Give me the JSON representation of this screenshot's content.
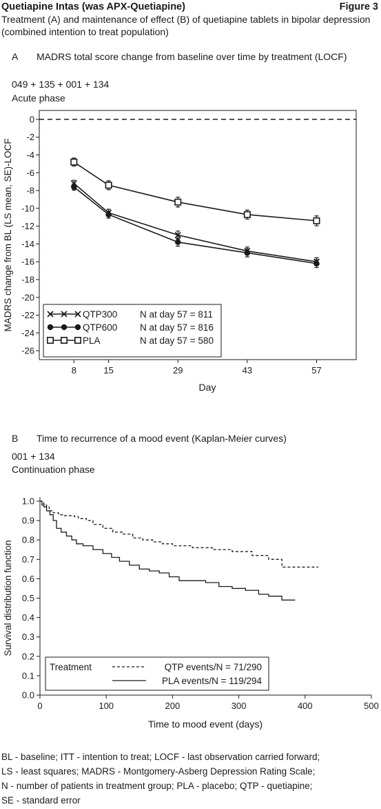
{
  "header": {
    "drug": "Quetiapine Intas (was APX-Quetiapine)",
    "figure": "Figure 3",
    "caption_line1": "Treatment (A) and maintenance of effect (B) of quetiapine tablets in bipolar depression",
    "caption_line2": "(combined intention to treat population)"
  },
  "panel_a": {
    "letter": "A",
    "heading": "MADRS total score change from baseline over time by treatment (LOCF)",
    "studies": "049 + 135 + 001 + 134",
    "phase": "Acute phase"
  },
  "panel_b": {
    "letter": "B",
    "heading": "Time to recurrence of a mood event (Kaplan-Meier curves)",
    "studies": "001 + 134",
    "phase": "Continuation phase"
  },
  "footnotes": [
    "BL - baseline; ITT - intention to treat; LOCF - last observation carried forward;",
    "LS - least squares; MADRS - Montgomery-Asberg Depression Rating Scale;",
    "N - number of patients in treatment group; PLA - placebo; QTP - quetiapine;",
    "SE - standard error"
  ],
  "chart_data": [
    {
      "type": "line",
      "xlabel": "Day",
      "ylabel": "MADRS change from BL (LS mean, SE)-LOCF",
      "x": [
        8,
        15,
        29,
        43,
        57
      ],
      "xlim": [
        1,
        65
      ],
      "ylim": [
        -27,
        1
      ],
      "yticks": [
        0,
        -2,
        -4,
        -6,
        -8,
        -10,
        -12,
        -14,
        -16,
        -18,
        -20,
        -22,
        -24,
        -26
      ],
      "reference_line": 0,
      "legend_position": "bottom-left",
      "series": [
        {
          "name": "QTP300",
          "n_label": "N at day 57 = 811",
          "marker": "x",
          "color": "#1a1a1a",
          "values": [
            -7.2,
            -10.5,
            -13.0,
            -14.8,
            -16.0
          ],
          "se": [
            0.35,
            0.4,
            0.45,
            0.45,
            0.45
          ]
        },
        {
          "name": "QTP600",
          "n_label": "N at day 57 = 816",
          "marker": "filled-circle",
          "color": "#1a1a1a",
          "values": [
            -7.6,
            -10.7,
            -13.8,
            -15.0,
            -16.2
          ],
          "se": [
            0.35,
            0.4,
            0.45,
            0.45,
            0.45
          ]
        },
        {
          "name": "PLA",
          "n_label": "N at day 57 = 580",
          "marker": "open-square",
          "color": "#1a1a1a",
          "values": [
            -4.8,
            -7.4,
            -9.3,
            -10.7,
            -11.4
          ],
          "se": [
            0.45,
            0.5,
            0.55,
            0.5,
            0.55
          ]
        }
      ]
    },
    {
      "type": "line",
      "subtype": "kaplan-meier",
      "xlabel": "Time to mood event (days)",
      "ylabel": "Survival distribution function",
      "xlim": [
        0,
        500
      ],
      "ylim": [
        0,
        1
      ],
      "xticks": [
        0,
        100,
        200,
        300,
        400,
        500
      ],
      "yticks": [
        "0.0",
        "0.1",
        "0.2",
        "0.3",
        "0.4",
        "0.5",
        "0.6",
        "0.7",
        "0.8",
        "0.9",
        "1.0"
      ],
      "legend_position": "bottom",
      "legend_title": "Treatment",
      "series": [
        {
          "name": "QTP events/N = 71/290",
          "style": "dashed",
          "color": "#1a1a1a",
          "x": [
            0,
            3,
            6,
            10,
            14,
            20,
            28,
            35,
            45,
            52,
            58,
            70,
            80,
            95,
            110,
            125,
            140,
            155,
            170,
            185,
            200,
            230,
            260,
            290,
            320,
            345,
            365,
            420
          ],
          "y": [
            1.0,
            0.99,
            0.98,
            0.97,
            0.95,
            0.94,
            0.93,
            0.925,
            0.925,
            0.92,
            0.91,
            0.9,
            0.88,
            0.86,
            0.84,
            0.83,
            0.81,
            0.8,
            0.79,
            0.78,
            0.77,
            0.76,
            0.75,
            0.74,
            0.72,
            0.7,
            0.66,
            0.66
          ]
        },
        {
          "name": "PLA events/N = 119/294",
          "style": "solid",
          "color": "#1a1a1a",
          "x": [
            0,
            3,
            6,
            10,
            15,
            20,
            25,
            32,
            40,
            48,
            55,
            65,
            80,
            95,
            108,
            120,
            135,
            150,
            165,
            180,
            195,
            210,
            250,
            270,
            290,
            310,
            330,
            345,
            365,
            385
          ],
          "y": [
            1.0,
            0.98,
            0.97,
            0.95,
            0.93,
            0.9,
            0.86,
            0.84,
            0.82,
            0.8,
            0.78,
            0.77,
            0.75,
            0.73,
            0.71,
            0.69,
            0.67,
            0.65,
            0.64,
            0.63,
            0.61,
            0.59,
            0.58,
            0.56,
            0.55,
            0.54,
            0.52,
            0.51,
            0.49,
            0.49
          ]
        }
      ]
    }
  ]
}
